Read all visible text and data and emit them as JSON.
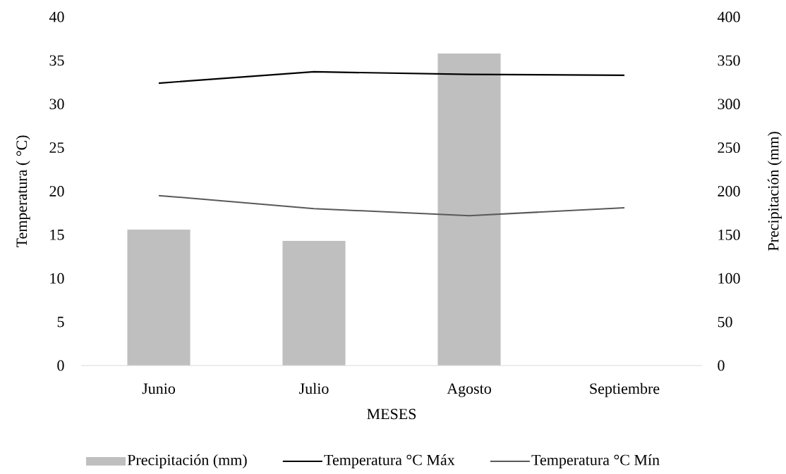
{
  "chart_data": {
    "type": "line",
    "xlabel": "MESES",
    "ylabel": "Temperatura ( °C)",
    "y2label": "Precipitación (mm)",
    "categories": [
      "Junio",
      "Julio",
      "Agosto",
      "Septiembre"
    ],
    "ylim": [
      0,
      40
    ],
    "yticks": [
      0,
      5,
      10,
      15,
      20,
      25,
      30,
      35,
      40
    ],
    "y2lim": [
      0,
      400
    ],
    "y2ticks": [
      0,
      50,
      100,
      150,
      200,
      250,
      300,
      350,
      400
    ],
    "legend": "bottom",
    "series": [
      {
        "name": "Precipitación (mm)",
        "type": "bar",
        "axis": "y2",
        "color": "#bfbfbf",
        "values": [
          156,
          143,
          358,
          0
        ]
      },
      {
        "name": "Temperatura °C Máx",
        "color": "#000000",
        "values": [
          32.4,
          33.7,
          33.4,
          33.3
        ]
      },
      {
        "name": "Temperatura °C Mín",
        "color": "#595959",
        "values": [
          19.5,
          18.0,
          17.2,
          18.1
        ]
      }
    ]
  }
}
